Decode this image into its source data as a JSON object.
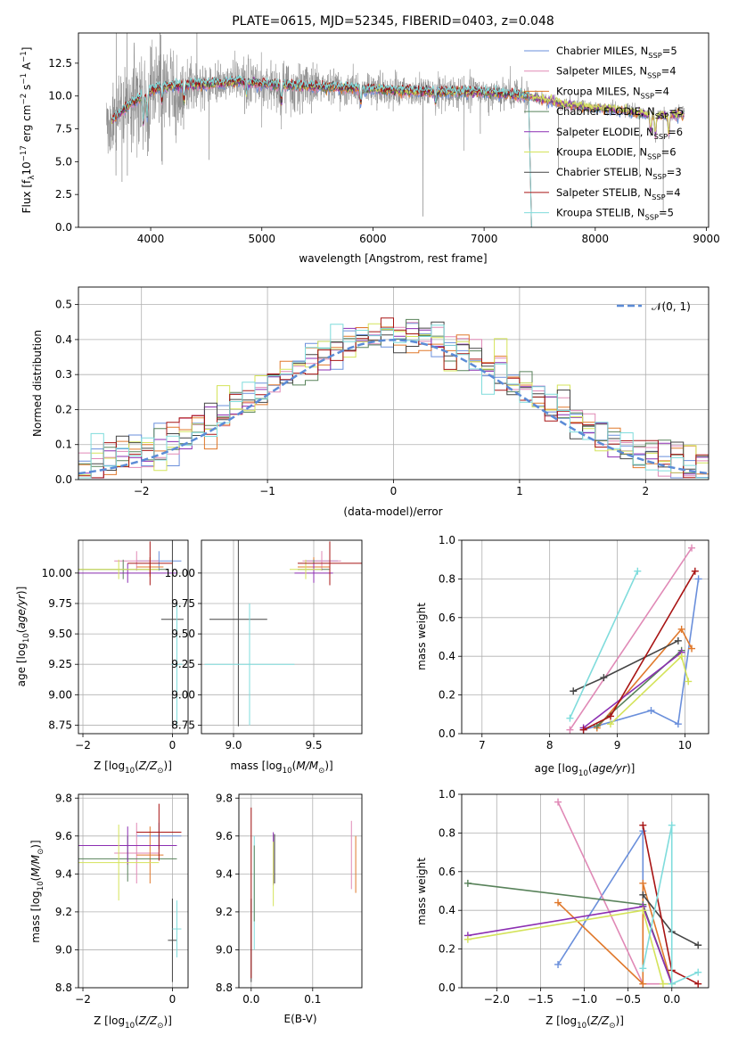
{
  "colors": {
    "Chabrier MILES": "#6a8fdb",
    "Salpeter MILES": "#e089b6",
    "Kroupa MILES": "#e0782b",
    "Chabrier ELODIE": "#58825a",
    "Salpeter ELODIE": "#8c2fb2",
    "Kroupa ELODIE": "#d4e35a",
    "Chabrier STELIB": "#454545",
    "Salpeter STELIB": "#a81414",
    "Kroupa STELIB": "#7fdcdc",
    "normal_curve": "#5b8bd6",
    "grid": "#b0b0b0"
  },
  "chart_data": [
    {
      "type": "line",
      "id": "spectrum",
      "title": "PLATE=0615, MJD=52345, FIBERID=0403, z=0.048",
      "xlabel": "wavelength [Angstrom, rest frame]",
      "ylabel": "Flux [f_λ10^-17 erg cm^-2 s^-1 A^-1]",
      "xlim": [
        3350,
        9020
      ],
      "ylim": [
        0,
        14.8
      ],
      "xticks": [
        "4000",
        "5000",
        "6000",
        "7000",
        "8000",
        "9000"
      ],
      "yticks": [
        "0.0",
        "2.5",
        "5.0",
        "7.5",
        "10.0",
        "12.5"
      ],
      "data_range": [
        3600,
        8800
      ],
      "continuum": [
        [
          3600,
          7.8
        ],
        [
          3700,
          8.5
        ],
        [
          3800,
          9.3
        ],
        [
          3900,
          9.8
        ],
        [
          4000,
          10.4
        ],
        [
          4100,
          10.7
        ],
        [
          4300,
          10.8
        ],
        [
          4500,
          10.9
        ],
        [
          4800,
          11.1
        ],
        [
          5000,
          10.9
        ],
        [
          5500,
          10.7
        ],
        [
          6000,
          10.5
        ],
        [
          6500,
          10.3
        ],
        [
          7000,
          10.3
        ],
        [
          7400,
          10.0
        ],
        [
          7800,
          9.3
        ],
        [
          8200,
          9.0
        ],
        [
          8500,
          8.6
        ],
        [
          8800,
          8.6
        ]
      ],
      "legend": [
        {
          "name": "Chabrier MILES",
          "n": "5"
        },
        {
          "name": "Salpeter MILES",
          "n": "4"
        },
        {
          "name": "Kroupa MILES",
          "n": "4"
        },
        {
          "name": "Chabrier ELODIE",
          "n": "5"
        },
        {
          "name": "Salpeter ELODIE",
          "n": "6"
        },
        {
          "name": "Kroupa ELODIE",
          "n": "6"
        },
        {
          "name": "Chabrier STELIB",
          "n": "3"
        },
        {
          "name": "Salpeter STELIB",
          "n": "4"
        },
        {
          "name": "Kroupa STELIB",
          "n": "5"
        }
      ],
      "legend_position": "upper-right"
    },
    {
      "type": "step",
      "id": "residuals",
      "xlabel": "(data-model)/error",
      "ylabel": "Normed distribution",
      "xlim": [
        -2.5,
        2.5
      ],
      "ylim": [
        0,
        0.55
      ],
      "xticks": [
        "−2",
        "−1",
        "0",
        "1",
        "2"
      ],
      "yticks": [
        "0.0",
        "0.1",
        "0.2",
        "0.3",
        "0.4",
        "0.5"
      ],
      "grid": true,
      "bin_width": 0.1,
      "legend_label": "𝒩(0, 1)",
      "legend_position": "upper-right"
    },
    {
      "type": "errorbar",
      "id": "age_vs_Z",
      "xlabel": "Z [log10(Z/Z⊙)]",
      "ylabel": "age  [log10(age/yr)]",
      "xlim": [
        -2.1,
        0.35
      ],
      "ylim": [
        8.68,
        10.27
      ],
      "xticks": [
        "−2",
        "0"
      ],
      "yticks": [
        "8.75",
        "9.00",
        "9.25",
        "9.50",
        "9.75",
        "10.00"
      ],
      "grid": true,
      "points": [
        {
          "model": "Chabrier MILES",
          "x": -0.3,
          "y": 10.1,
          "xerr": 0.5,
          "yerr": 0.08
        },
        {
          "model": "Salpeter MILES",
          "x": -0.8,
          "y": 10.1,
          "xerr": 0.5,
          "yerr": 0.08
        },
        {
          "model": "Kroupa MILES",
          "x": -0.5,
          "y": 10.05,
          "xerr": 0.3,
          "yerr": 0.08
        },
        {
          "model": "Chabrier ELODIE",
          "x": -1.1,
          "y": 10.03,
          "xerr": 1.0,
          "yerr": 0.08
        },
        {
          "model": "Salpeter ELODIE",
          "x": -1.0,
          "y": 10.0,
          "xerr": 1.1,
          "yerr": 0.08
        },
        {
          "model": "Kroupa ELODIE",
          "x": -1.2,
          "y": 10.03,
          "xerr": 0.9,
          "yerr": 0.08
        },
        {
          "model": "Chabrier STELIB",
          "x": 0.0,
          "y": 9.62,
          "xerr": 0.25,
          "yerr": 0.88
        },
        {
          "model": "Salpeter STELIB",
          "x": -0.5,
          "y": 10.08,
          "xerr": 0.5,
          "yerr": 0.18
        },
        {
          "model": "Kroupa STELIB",
          "x": 0.1,
          "y": 9.25,
          "xerr": 0.12,
          "yerr": 0.5
        }
      ]
    },
    {
      "type": "errorbar",
      "id": "age_vs_mass",
      "xlabel": "mass [log10(M/M⊙)]",
      "ylabel": "",
      "xlim": [
        8.8,
        9.8
      ],
      "ylim": [
        8.68,
        10.27
      ],
      "xticks": [
        "9.0",
        "9.5"
      ],
      "yticks": [
        "8.75",
        "9.00",
        "9.25",
        "9.50",
        "9.75",
        "10.00"
      ],
      "grid": true,
      "points": [
        {
          "model": "Chabrier MILES",
          "x": 9.55,
          "y": 10.1,
          "xerr": 0.1,
          "yerr": 0.08
        },
        {
          "model": "Salpeter MILES",
          "x": 9.55,
          "y": 10.1,
          "xerr": 0.12,
          "yerr": 0.08
        },
        {
          "model": "Kroupa MILES",
          "x": 9.5,
          "y": 10.05,
          "xerr": 0.1,
          "yerr": 0.08
        },
        {
          "model": "Chabrier ELODIE",
          "x": 9.5,
          "y": 10.03,
          "xerr": 0.1,
          "yerr": 0.08
        },
        {
          "model": "Salpeter ELODIE",
          "x": 9.5,
          "y": 10.0,
          "xerr": 0.12,
          "yerr": 0.08
        },
        {
          "model": "Kroupa ELODIE",
          "x": 9.45,
          "y": 10.03,
          "xerr": 0.1,
          "yerr": 0.08
        },
        {
          "model": "Chabrier STELIB",
          "x": 9.03,
          "y": 9.62,
          "xerr": 0.18,
          "yerr": 0.88
        },
        {
          "model": "Salpeter STELIB",
          "x": 9.6,
          "y": 10.08,
          "xerr": 0.2,
          "yerr": 0.18
        },
        {
          "model": "Kroupa STELIB",
          "x": 9.1,
          "y": 9.25,
          "xerr": 0.28,
          "yerr": 0.5
        }
      ]
    },
    {
      "type": "line",
      "id": "weight_vs_age",
      "xlabel": "age  [log10(age/yr)]",
      "ylabel": "mass weight",
      "xlim": [
        6.7,
        10.35
      ],
      "ylim": [
        0,
        1
      ],
      "xticks": [
        "7",
        "8",
        "9",
        "10"
      ],
      "yticks": [
        "0.0",
        "0.2",
        "0.4",
        "0.6",
        "0.8",
        "1.0"
      ],
      "grid": true,
      "series": [
        {
          "model": "Chabrier MILES",
          "points": [
            [
              8.5,
              0.02
            ],
            [
              9.5,
              0.12
            ],
            [
              9.9,
              0.05
            ],
            [
              10.2,
              0.8
            ]
          ]
        },
        {
          "model": "Salpeter MILES",
          "points": [
            [
              8.3,
              0.02
            ],
            [
              10.1,
              0.96
            ]
          ]
        },
        {
          "model": "Kroupa MILES",
          "points": [
            [
              8.7,
              0.03
            ],
            [
              9.95,
              0.54
            ],
            [
              10.1,
              0.44
            ]
          ]
        },
        {
          "model": "Chabrier ELODIE",
          "points": [
            [
              8.7,
              0.04
            ],
            [
              9.95,
              0.43
            ]
          ]
        },
        {
          "model": "Salpeter ELODIE",
          "points": [
            [
              8.5,
              0.03
            ],
            [
              9.95,
              0.42
            ]
          ]
        },
        {
          "model": "Kroupa ELODIE",
          "points": [
            [
              8.9,
              0.05
            ],
            [
              9.95,
              0.4
            ],
            [
              10.05,
              0.27
            ]
          ]
        },
        {
          "model": "Chabrier STELIB",
          "points": [
            [
              8.35,
              0.22
            ],
            [
              8.8,
              0.29
            ],
            [
              9.9,
              0.48
            ]
          ]
        },
        {
          "model": "Salpeter STELIB",
          "points": [
            [
              8.5,
              0.02
            ],
            [
              8.9,
              0.09
            ],
            [
              10.15,
              0.84
            ]
          ]
        },
        {
          "model": "Kroupa STELIB",
          "points": [
            [
              8.3,
              0.08
            ],
            [
              9.3,
              0.84
            ]
          ]
        }
      ]
    },
    {
      "type": "errorbar",
      "id": "mass_vs_Z",
      "xlabel": "Z [log10(Z/Z⊙)]",
      "ylabel": "mass [log10(M/M⊙)]",
      "xlim": [
        -2.1,
        0.35
      ],
      "ylim": [
        8.8,
        9.82
      ],
      "xticks": [
        "−2",
        "0"
      ],
      "yticks": [
        "8.8",
        "9.0",
        "9.2",
        "9.4",
        "9.6",
        "9.8"
      ],
      "grid": true,
      "points": [
        {
          "model": "Chabrier MILES",
          "x": -0.3,
          "y": 9.6,
          "xerr": 0.5,
          "yerr": 0.07
        },
        {
          "model": "Salpeter MILES",
          "x": -0.8,
          "y": 9.51,
          "xerr": 0.5,
          "yerr": 0.16
        },
        {
          "model": "Kroupa MILES",
          "x": -0.5,
          "y": 9.5,
          "xerr": 0.3,
          "yerr": 0.15
        },
        {
          "model": "Chabrier ELODIE",
          "x": -1.0,
          "y": 9.48,
          "xerr": 1.1,
          "yerr": 0.12
        },
        {
          "model": "Salpeter ELODIE",
          "x": -1.0,
          "y": 9.55,
          "xerr": 1.1,
          "yerr": 0.1
        },
        {
          "model": "Kroupa ELODIE",
          "x": -1.2,
          "y": 9.46,
          "xerr": 0.9,
          "yerr": 0.2
        },
        {
          "model": "Chabrier STELIB",
          "x": 0.0,
          "y": 9.05,
          "xerr": 0.1,
          "yerr": 0.22
        },
        {
          "model": "Salpeter STELIB",
          "x": -0.3,
          "y": 9.62,
          "xerr": 0.5,
          "yerr": 0.15
        },
        {
          "model": "Kroupa STELIB",
          "x": 0.1,
          "y": 9.11,
          "xerr": 0.1,
          "yerr": 0.15
        }
      ]
    },
    {
      "type": "errorbar",
      "id": "mass_vs_EBV",
      "xlabel": "E(B-V)",
      "ylabel": "",
      "xlim": [
        -0.02,
        0.18
      ],
      "ylim": [
        8.8,
        9.82
      ],
      "xticks": [
        "0.0",
        "0.1"
      ],
      "yticks": [
        "8.8",
        "9.0",
        "9.2",
        "9.4",
        "9.6",
        "9.8"
      ],
      "grid": true,
      "points": [
        {
          "model": "Salpeter MILES",
          "x": 0.163,
          "y": 9.5,
          "xerr": 0,
          "yerr": 0.18
        },
        {
          "model": "Kroupa MILES",
          "x": 0.17,
          "y": 9.45,
          "xerr": 0,
          "yerr": 0.15
        },
        {
          "model": "Chabrier STELIB",
          "x": 0.0,
          "y": 9.05,
          "xerr": 0,
          "yerr": 0.22
        },
        {
          "model": "Salpeter STELIB",
          "x": 0.0,
          "y": 9.3,
          "xerr": 0,
          "yerr": 0.45
        },
        {
          "model": "Kroupa STELIB",
          "x": 0.005,
          "y": 9.3,
          "xerr": 0,
          "yerr": 0.3
        },
        {
          "model": "Salpeter ELODIE",
          "x": 0.036,
          "y": 9.48,
          "xerr": 0,
          "yerr": 0.14
        },
        {
          "model": "Kroupa ELODIE",
          "x": 0.036,
          "y": 9.4,
          "xerr": 0,
          "yerr": 0.17
        },
        {
          "model": "Chabrier STELIB",
          "x": 0.038,
          "y": 9.48,
          "xerr": 0,
          "yerr": 0.13
        },
        {
          "model": "Chabrier ELODIE",
          "x": 0.005,
          "y": 9.35,
          "xerr": 0,
          "yerr": 0.2
        }
      ]
    },
    {
      "type": "line",
      "id": "weight_vs_Z",
      "xlabel": "Z [log10(Z/Z⊙)]",
      "ylabel": "mass weight",
      "xlim": [
        -2.4,
        0.42
      ],
      "ylim": [
        0,
        1
      ],
      "xticks": [
        "−2.0",
        "−1.5",
        "−1.0",
        "−0.5",
        "0.0"
      ],
      "yticks": [
        "0.0",
        "0.2",
        "0.4",
        "0.6",
        "0.8",
        "1.0"
      ],
      "grid": true,
      "series": [
        {
          "model": "Chabrier MILES",
          "points": [
            [
              -1.3,
              0.12
            ],
            [
              -0.33,
              0.81
            ],
            [
              -0.33,
              0.42
            ]
          ]
        },
        {
          "model": "Salpeter MILES",
          "points": [
            [
              -1.3,
              0.96
            ],
            [
              -0.33,
              0.02
            ],
            [
              0.0,
              0.02
            ]
          ]
        },
        {
          "model": "Kroupa MILES",
          "points": [
            [
              -1.3,
              0.44
            ],
            [
              -0.33,
              0.02
            ],
            [
              -0.33,
              0.54
            ],
            [
              0.0,
              0.02
            ]
          ]
        },
        {
          "model": "Chabrier ELODIE",
          "points": [
            [
              -2.33,
              0.54
            ],
            [
              -0.33,
              0.43
            ],
            [
              0.0,
              0.02
            ]
          ]
        },
        {
          "model": "Salpeter ELODIE",
          "points": [
            [
              -2.33,
              0.27
            ],
            [
              -0.33,
              0.42
            ],
            [
              0.0,
              0.02
            ]
          ]
        },
        {
          "model": "Kroupa ELODIE",
          "points": [
            [
              -2.33,
              0.25
            ],
            [
              -0.33,
              0.4
            ],
            [
              -0.1,
              0.02
            ],
            [
              0.0,
              0.02
            ]
          ]
        },
        {
          "model": "Chabrier STELIB",
          "points": [
            [
              -0.33,
              0.48
            ],
            [
              0.0,
              0.29
            ],
            [
              0.3,
              0.22
            ]
          ]
        },
        {
          "model": "Salpeter STELIB",
          "points": [
            [
              -0.33,
              0.84
            ],
            [
              0.0,
              0.09
            ],
            [
              0.3,
              0.02
            ]
          ]
        },
        {
          "model": "Kroupa STELIB",
          "points": [
            [
              -0.33,
              0.1
            ],
            [
              0.0,
              0.84
            ],
            [
              0.0,
              0.02
            ],
            [
              0.3,
              0.08
            ]
          ]
        }
      ]
    }
  ]
}
